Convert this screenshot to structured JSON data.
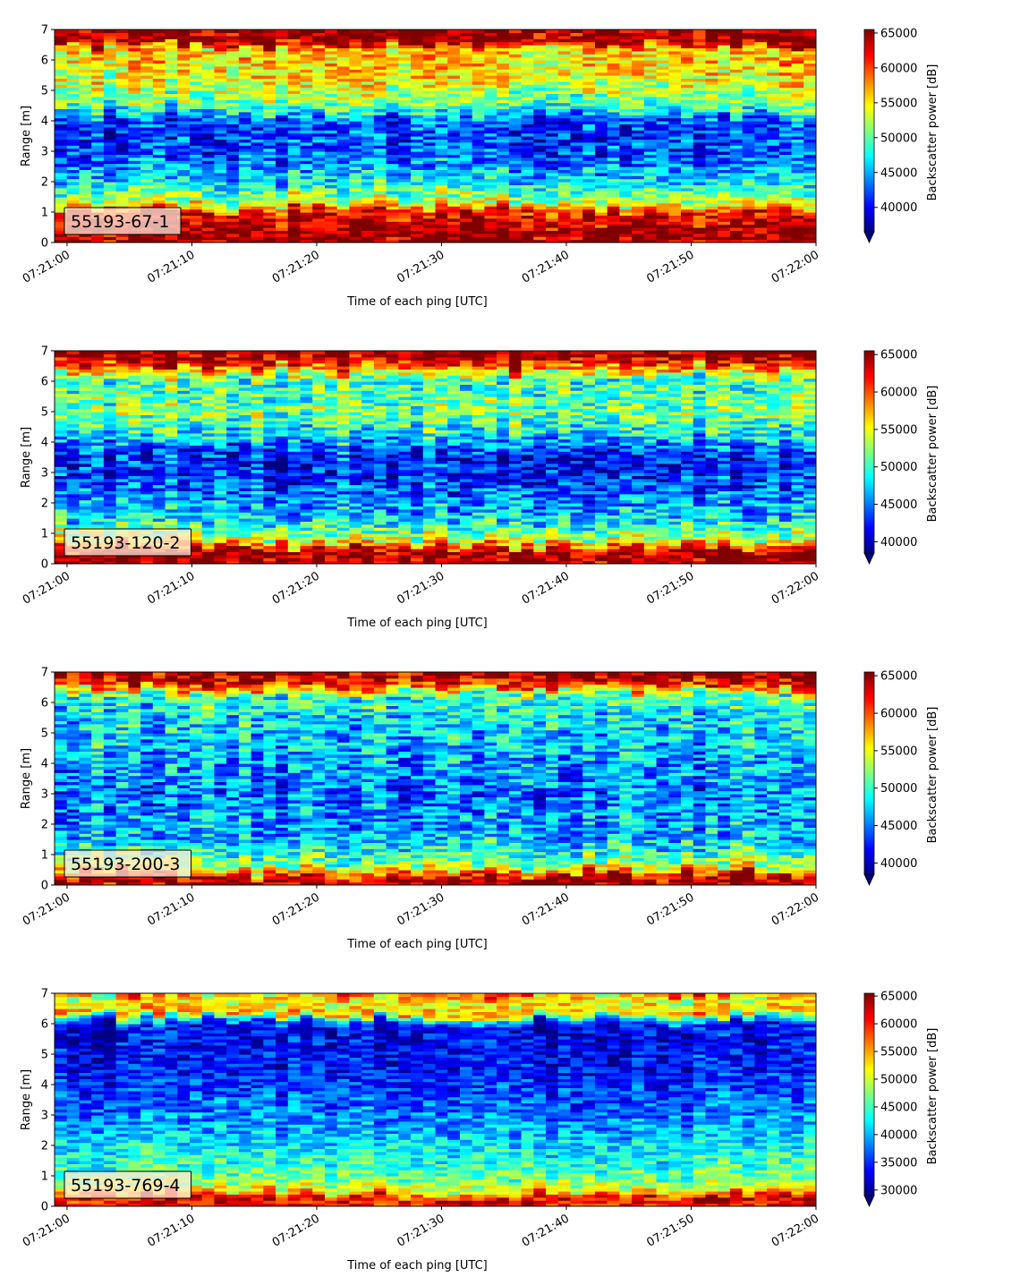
{
  "chart_data": [
    {
      "type": "heatmap",
      "panel_label": "55193-67-1",
      "xlabel": "Time of each ping [UTC]",
      "ylabel": "Range [m]",
      "x_ticks": [
        "07:21:00",
        "07:21:10",
        "07:21:20",
        "07:21:30",
        "07:21:40",
        "07:21:50",
        "07:22:00"
      ],
      "x_range": [
        "07:20:59",
        "07:22:00"
      ],
      "y_ticks": [
        0,
        1,
        2,
        3,
        4,
        5,
        6,
        7
      ],
      "ylim": [
        0,
        7
      ],
      "colorbar_label": "Backscatter power [dB]",
      "colorbar_ticks": [
        40000,
        45000,
        50000,
        55000,
        60000,
        65000
      ],
      "colorbar_range": [
        36500,
        65500
      ],
      "colormap": "jet",
      "colorbar_extend": "min",
      "profile": [
        {
          "range": 0.0,
          "value": 65000
        },
        {
          "range": 0.3,
          "value": 65000
        },
        {
          "range": 1.0,
          "value": 62000
        },
        {
          "range": 1.3,
          "value": 53000
        },
        {
          "range": 2.0,
          "value": 47000
        },
        {
          "range": 3.0,
          "value": 42000
        },
        {
          "range": 4.0,
          "value": 42000
        },
        {
          "range": 4.5,
          "value": 50000
        },
        {
          "range": 5.5,
          "value": 55000
        },
        {
          "range": 6.4,
          "value": 56000
        },
        {
          "range": 6.6,
          "value": 65000
        },
        {
          "range": 7.0,
          "value": 65000
        }
      ]
    },
    {
      "type": "heatmap",
      "panel_label": "55193-120-2",
      "xlabel": "Time of each ping [UTC]",
      "ylabel": "Range [m]",
      "x_ticks": [
        "07:21:00",
        "07:21:10",
        "07:21:20",
        "07:21:30",
        "07:21:40",
        "07:21:50",
        "07:22:00"
      ],
      "x_range": [
        "07:20:59",
        "07:22:00"
      ],
      "y_ticks": [
        0,
        1,
        2,
        3,
        4,
        5,
        6,
        7
      ],
      "ylim": [
        0,
        7
      ],
      "colorbar_label": "Backscatter power [dB]",
      "colorbar_ticks": [
        40000,
        45000,
        50000,
        55000,
        60000,
        65000
      ],
      "colorbar_range": [
        38500,
        65500
      ],
      "colormap": "jet",
      "colorbar_extend": "min",
      "profile": [
        {
          "range": 0.0,
          "value": 65000
        },
        {
          "range": 0.4,
          "value": 65000
        },
        {
          "range": 0.8,
          "value": 54000
        },
        {
          "range": 1.5,
          "value": 48000
        },
        {
          "range": 2.5,
          "value": 44000
        },
        {
          "range": 3.5,
          "value": 42000
        },
        {
          "range": 4.2,
          "value": 48000
        },
        {
          "range": 5.0,
          "value": 52000
        },
        {
          "range": 6.0,
          "value": 50000
        },
        {
          "range": 6.5,
          "value": 60000
        },
        {
          "range": 6.8,
          "value": 65000
        },
        {
          "range": 7.0,
          "value": 65000
        }
      ]
    },
    {
      "type": "heatmap",
      "panel_label": "55193-200-3",
      "xlabel": "Time of each ping [UTC]",
      "ylabel": "Range [m]",
      "x_ticks": [
        "07:21:00",
        "07:21:10",
        "07:21:20",
        "07:21:30",
        "07:21:40",
        "07:21:50",
        "07:22:00"
      ],
      "x_range": [
        "07:20:59",
        "07:22:00"
      ],
      "y_ticks": [
        0,
        1,
        2,
        3,
        4,
        5,
        6,
        7
      ],
      "ylim": [
        0,
        7
      ],
      "colorbar_label": "Backscatter power [dB]",
      "colorbar_ticks": [
        40000,
        45000,
        50000,
        55000,
        60000,
        65000
      ],
      "colorbar_range": [
        38500,
        65500
      ],
      "colormap": "jet",
      "colorbar_extend": "min",
      "profile": [
        {
          "range": 0.0,
          "value": 65000
        },
        {
          "range": 0.3,
          "value": 63000
        },
        {
          "range": 0.7,
          "value": 52000
        },
        {
          "range": 1.5,
          "value": 47000
        },
        {
          "range": 3.0,
          "value": 45000
        },
        {
          "range": 4.5,
          "value": 47000
        },
        {
          "range": 5.5,
          "value": 48000
        },
        {
          "range": 6.2,
          "value": 50000
        },
        {
          "range": 6.6,
          "value": 62000
        },
        {
          "range": 7.0,
          "value": 65000
        }
      ]
    },
    {
      "type": "heatmap",
      "panel_label": "55193-769-4",
      "xlabel": "Time of each ping [UTC]",
      "ylabel": "Range [m]",
      "x_ticks": [
        "07:21:00",
        "07:21:10",
        "07:21:20",
        "07:21:30",
        "07:21:40",
        "07:21:50",
        "07:22:00"
      ],
      "x_range": [
        "07:20:59",
        "07:22:00"
      ],
      "y_ticks": [
        0,
        1,
        2,
        3,
        4,
        5,
        6,
        7
      ],
      "ylim": [
        0,
        7
      ],
      "colorbar_label": "Backscatter power [dB]",
      "colorbar_ticks": [
        30000,
        35000,
        40000,
        45000,
        50000,
        55000,
        60000,
        65000
      ],
      "colorbar_range": [
        29000,
        65500
      ],
      "colormap": "jet",
      "colorbar_extend": "min",
      "profile": [
        {
          "range": 0.0,
          "value": 60000
        },
        {
          "range": 0.3,
          "value": 62000
        },
        {
          "range": 0.5,
          "value": 52000
        },
        {
          "range": 1.0,
          "value": 46000
        },
        {
          "range": 2.0,
          "value": 42000
        },
        {
          "range": 3.0,
          "value": 38000
        },
        {
          "range": 4.5,
          "value": 34000
        },
        {
          "range": 6.0,
          "value": 33000
        },
        {
          "range": 6.4,
          "value": 55000
        },
        {
          "range": 6.8,
          "value": 50000
        },
        {
          "range": 7.0,
          "value": 58000
        }
      ]
    }
  ]
}
